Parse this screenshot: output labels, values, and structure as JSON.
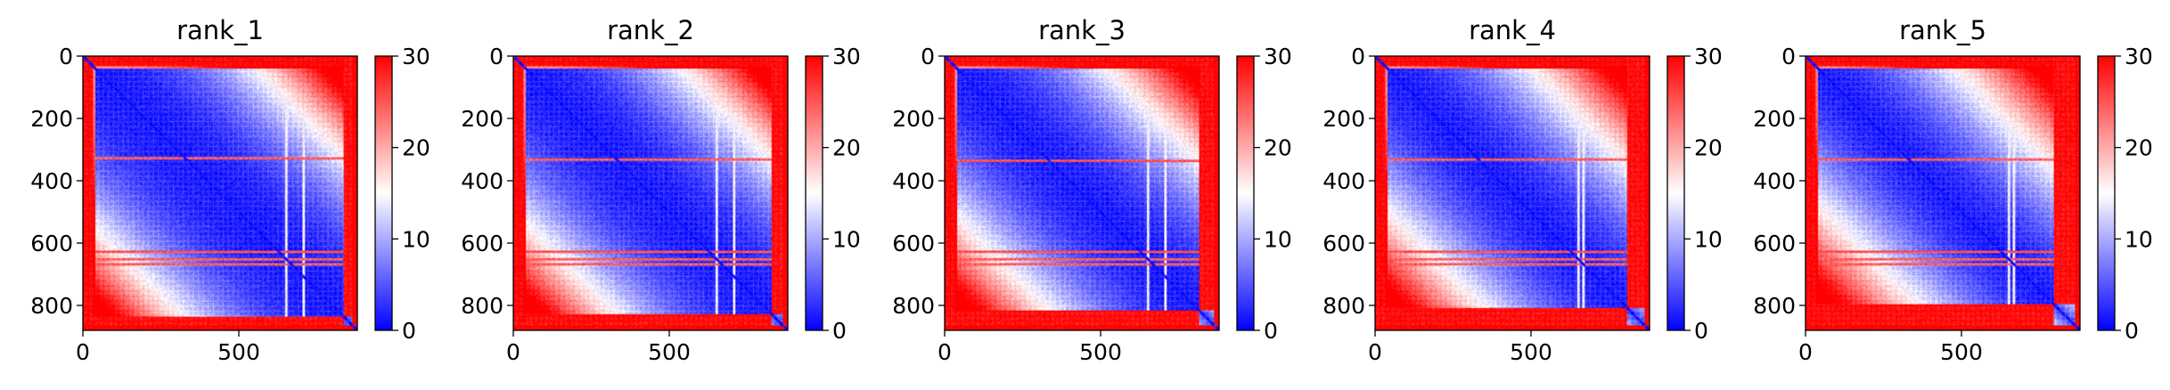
{
  "figure": {
    "background": "#ffffff",
    "colormap": {
      "name": "bwr",
      "low": "#0000ff",
      "mid": "#ffffff",
      "high": "#ff0000"
    }
  },
  "chart_data": [
    {
      "type": "heatmap",
      "title": "rank_1",
      "matrix_size": 880,
      "xticks": [
        0,
        500
      ],
      "yticks": [
        0,
        200,
        400,
        600,
        800
      ],
      "xlim": [
        0,
        880
      ],
      "ylim": [
        880,
        0
      ],
      "colorbar": {
        "range": [
          0,
          30
        ],
        "ticks": [
          0,
          10,
          20,
          30
        ]
      },
      "pattern": {
        "spread": 0.62,
        "red_bands": [
          325,
          625,
          650,
          665
        ],
        "white_columns": [
          650,
          705
        ],
        "block_edge": 835
      }
    },
    {
      "type": "heatmap",
      "title": "rank_2",
      "matrix_size": 880,
      "xticks": [
        0,
        500
      ],
      "yticks": [
        0,
        200,
        400,
        600,
        800
      ],
      "xlim": [
        0,
        880
      ],
      "ylim": [
        880,
        0
      ],
      "colorbar": {
        "range": [
          0,
          30
        ],
        "ticks": [
          0,
          10,
          20,
          30
        ]
      },
      "pattern": {
        "spread": 0.56,
        "red_bands": [
          330,
          625,
          650,
          665
        ],
        "white_columns": [
          650,
          705
        ],
        "block_edge": 825
      }
    },
    {
      "type": "heatmap",
      "title": "rank_3",
      "matrix_size": 880,
      "xticks": [
        0,
        500
      ],
      "yticks": [
        0,
        200,
        400,
        600,
        800
      ],
      "xlim": [
        0,
        880
      ],
      "ylim": [
        880,
        0
      ],
      "colorbar": {
        "range": [
          0,
          30
        ],
        "ticks": [
          0,
          10,
          20,
          30
        ]
      },
      "pattern": {
        "spread": 0.5,
        "red_bands": [
          335,
          625,
          650,
          665
        ],
        "white_columns": [
          650,
          705
        ],
        "block_edge": 815
      }
    },
    {
      "type": "heatmap",
      "title": "rank_4",
      "matrix_size": 880,
      "xticks": [
        0,
        500
      ],
      "yticks": [
        0,
        200,
        400,
        600,
        800
      ],
      "xlim": [
        0,
        880
      ],
      "ylim": [
        880,
        0
      ],
      "colorbar": {
        "range": [
          0,
          30
        ],
        "ticks": [
          0,
          10,
          20,
          30
        ]
      },
      "pattern": {
        "spread": 0.44,
        "red_bands": [
          330,
          625,
          650,
          665
        ],
        "white_columns": [
          650,
          665
        ],
        "block_edge": 805
      }
    },
    {
      "type": "heatmap",
      "title": "rank_5",
      "matrix_size": 880,
      "xticks": [
        0,
        500
      ],
      "yticks": [
        0,
        200,
        400,
        600,
        800
      ],
      "xlim": [
        0,
        880
      ],
      "ylim": [
        880,
        0
      ],
      "colorbar": {
        "range": [
          0,
          30
        ],
        "ticks": [
          0,
          10,
          20,
          30
        ]
      },
      "pattern": {
        "spread": 0.38,
        "red_bands": [
          330,
          625,
          650,
          665
        ],
        "white_columns": [
          650,
          665
        ],
        "block_edge": 795
      }
    }
  ]
}
